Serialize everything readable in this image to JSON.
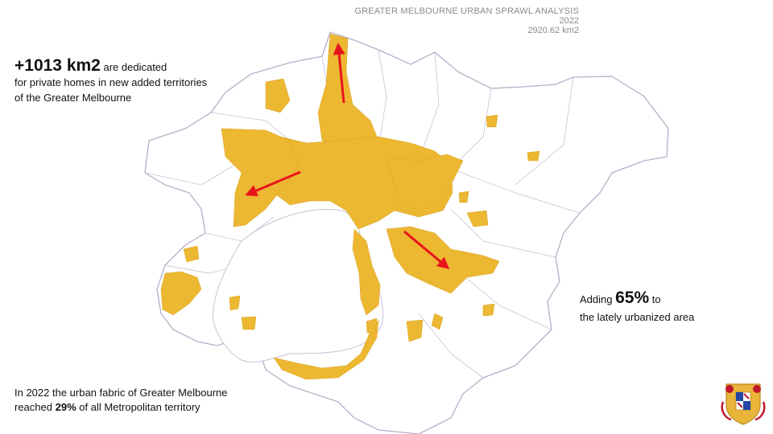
{
  "header": {
    "title": "GREATER MELBOURNE URBAN SPRAWL ANALYSIS",
    "year": "2022",
    "area": "2920.62 km2"
  },
  "stat_added": {
    "value": "+1013 km2",
    "text_1": "are dedicated",
    "text_2": "for private homes in new added territories of the Greater Melbourne"
  },
  "stat_growth": {
    "prefix": "Adding",
    "value": "65%",
    "suffix": "to",
    "text_2": "the lately urbanized area"
  },
  "stat_share": {
    "text_1": "In 2022 the urban fabric of Greater Melbourne reached",
    "value": "29%",
    "text_2": "of all Metropolitan territory"
  },
  "colors": {
    "urban": "#ecb731",
    "boundary": "#b9aec8",
    "arrow": "#e8141c",
    "water": "#ffffff"
  },
  "icons": {
    "logo": "coat-of-arms-icon",
    "arrows": "growth-direction-arrow-icon"
  }
}
